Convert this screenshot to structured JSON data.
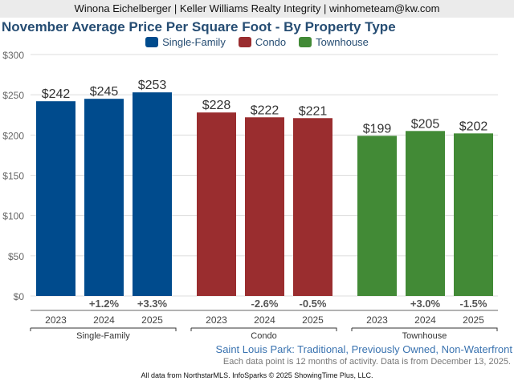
{
  "header": {
    "text": "Winona Eichelberger | Keller Williams Realty Integrity | winhometeam@kw.com"
  },
  "colors": {
    "Single-Family": "#004b8d",
    "Condo": "#9a2d2f",
    "Townhouse": "#428a36",
    "title": "#264d73"
  },
  "chart_data": {
    "type": "bar",
    "title": "November Average Price Per Square Foot - By Property Type",
    "xlabel": "",
    "ylabel": "",
    "ylim": [
      0,
      300
    ],
    "yticks": [
      0,
      50,
      100,
      150,
      200,
      250,
      300
    ],
    "ytick_labels": [
      "$0",
      "$50",
      "$100",
      "$150",
      "$200",
      "$250",
      "$300"
    ],
    "grid": true,
    "legend": {
      "placement": "top-center",
      "entries": [
        "Single-Family",
        "Condo",
        "Townhouse"
      ]
    },
    "groups": [
      {
        "name": "Single-Family",
        "categories": [
          "2023",
          "2024",
          "2025"
        ],
        "values": [
          242,
          245,
          253
        ],
        "labels": [
          "$242",
          "$245",
          "$253"
        ],
        "changes": [
          "",
          "+1.2%",
          "+3.3%"
        ]
      },
      {
        "name": "Condo",
        "categories": [
          "2023",
          "2024",
          "2025"
        ],
        "values": [
          228,
          222,
          221
        ],
        "labels": [
          "$228",
          "$222",
          "$221"
        ],
        "changes": [
          "",
          "-2.6%",
          "-0.5%"
        ]
      },
      {
        "name": "Townhouse",
        "categories": [
          "2023",
          "2024",
          "2025"
        ],
        "values": [
          199,
          205,
          202
        ],
        "labels": [
          "$199",
          "$205",
          "$202"
        ],
        "changes": [
          "",
          "+3.0%",
          "-1.5%"
        ]
      }
    ]
  },
  "subtitle": "Saint Louis Park: Traditional, Previously Owned, Non-Waterfront",
  "note": "Each data point is 12 months of activity. Data is from December 13, 2025.",
  "footer": "All data from NorthstarMLS. InfoSparks © 2025 ShowingTime Plus, LLC."
}
